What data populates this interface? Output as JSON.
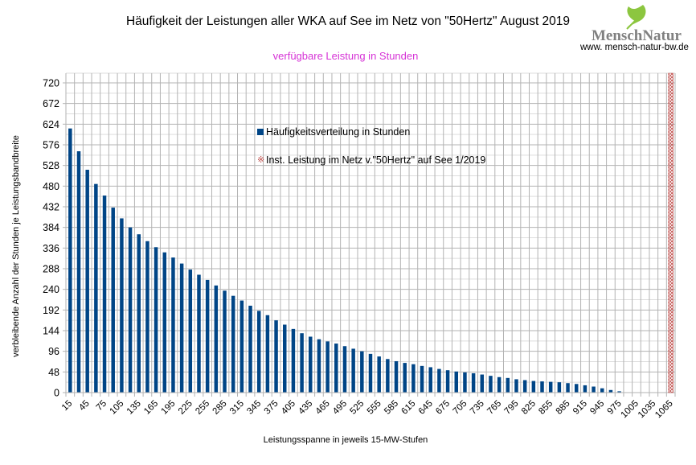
{
  "header": {
    "title": "Häufigkeit der Leistungen aller WKA auf See im Netz von \"50Hertz\" August 2019",
    "subtitle": "verfügbare Leistung in Stunden",
    "logo_text": "MenschNatur",
    "logo_url": "www. mensch-natur-bw.de",
    "logo_icon": "ginkgo-leaf-icon"
  },
  "colors": {
    "bar": "#004586",
    "subtitle": "#d633d6",
    "installed_marker": "#c0504d",
    "grid": "#b3b3b3"
  },
  "chart_data": {
    "type": "bar",
    "title": "Häufigkeit der Leistungen aller WKA auf See im Netz von \"50Hertz\" August 2019",
    "subtitle": "verfügbare Leistung in Stunden",
    "xlabel": "Leistungsspanne in jeweils 15-MW-Stufen",
    "ylabel": "verbleibende Anzahl der Stunden je Leistungsbandbreite",
    "ylim": [
      0,
      720
    ],
    "yticks": [
      0,
      48,
      96,
      144,
      192,
      240,
      288,
      336,
      384,
      432,
      480,
      528,
      576,
      624,
      672,
      720
    ],
    "grid": true,
    "legend_position": "top-center",
    "categories": [
      15,
      30,
      45,
      60,
      75,
      90,
      105,
      120,
      135,
      150,
      165,
      180,
      195,
      210,
      225,
      240,
      255,
      270,
      285,
      300,
      315,
      330,
      345,
      360,
      375,
      390,
      405,
      420,
      435,
      450,
      465,
      480,
      495,
      510,
      525,
      540,
      555,
      570,
      585,
      600,
      615,
      630,
      645,
      660,
      675,
      690,
      705,
      720,
      735,
      750,
      765,
      780,
      795,
      810,
      825,
      840,
      855,
      870,
      885,
      900,
      915,
      930,
      945,
      960,
      975,
      990,
      1005,
      1020,
      1035,
      1050,
      1065
    ],
    "xtick_labels": [
      "15",
      "45",
      "75",
      "105",
      "135",
      "165",
      "195",
      "225",
      "255",
      "285",
      "315",
      "345",
      "375",
      "405",
      "435",
      "465",
      "495",
      "525",
      "555",
      "585",
      "615",
      "645",
      "675",
      "705",
      "735",
      "765",
      "795",
      "825",
      "855",
      "885",
      "915",
      "945",
      "975",
      "1005",
      "1035",
      "1065"
    ],
    "series": [
      {
        "name": "Häufigkeitsverteilung in Stunden",
        "values": [
          614,
          561,
          518,
          485,
          458,
          430,
          405,
          384,
          368,
          352,
          338,
          326,
          314,
          300,
          286,
          274,
          262,
          249,
          237,
          225,
          214,
          202,
          190,
          180,
          168,
          158,
          148,
          138,
          130,
          124,
          119,
          114,
          108,
          102,
          96,
          90,
          84,
          78,
          73,
          69,
          66,
          62,
          59,
          55,
          52,
          49,
          47,
          45,
          42,
          39,
          36,
          34,
          31,
          29,
          27,
          26,
          25,
          24,
          22,
          20,
          17,
          14,
          10,
          6,
          3,
          0,
          0,
          0,
          0,
          0,
          0
        ]
      },
      {
        "name": "Inst. Leistung im Netz v.\"50Hertz\" auf See 1/2019",
        "category": 1065,
        "value": 720
      }
    ]
  }
}
